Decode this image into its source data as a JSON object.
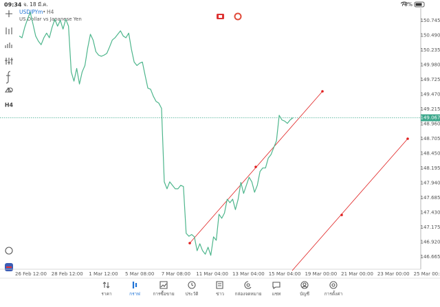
{
  "status_bar": {
    "time": "09:34",
    "date": "จ. 18 มี.ค.",
    "battery": "78%"
  },
  "header": {
    "symbol": "USDJPYm",
    "separator": "•",
    "timeframe": "H4",
    "description": "US Dollar vs Japanese Yen"
  },
  "chart_data": {
    "type": "line",
    "color": "#4cb58b",
    "values": [
      150.48,
      150.45,
      150.63,
      150.77,
      150.89,
      150.69,
      150.48,
      150.39,
      150.33,
      150.45,
      150.53,
      150.45,
      150.63,
      150.77,
      150.65,
      150.75,
      150.6,
      150.77,
      150.65,
      149.86,
      149.7,
      149.92,
      149.65,
      149.86,
      149.97,
      150.27,
      150.51,
      150.41,
      150.21,
      150.15,
      150.13,
      150.15,
      150.18,
      150.29,
      150.41,
      150.45,
      150.51,
      150.57,
      150.48,
      150.45,
      150.53,
      150.25,
      150.03,
      149.97,
      150.01,
      150.03,
      149.8,
      149.58,
      149.56,
      149.44,
      149.35,
      149.32,
      149.23,
      147.96,
      147.84,
      147.96,
      147.9,
      147.84,
      147.84,
      147.9,
      147.88,
      147.07,
      147.02,
      147.05,
      147.01,
      146.77,
      146.89,
      146.77,
      146.71,
      146.83,
      146.69,
      147.01,
      146.95,
      147.4,
      147.33,
      147.42,
      147.66,
      147.6,
      147.66,
      147.48,
      147.66,
      147.95,
      147.76,
      147.9,
      148.04,
      147.96,
      147.78,
      147.9,
      148.14,
      148.2,
      148.2,
      148.37,
      148.43,
      148.55,
      148.67,
      149.11,
      149.03,
      149.01,
      148.97,
      149.03,
      149.067
    ],
    "current_price": 149.067,
    "current_price_color": "#3aa68a",
    "grid": false,
    "ylim": [
      146.45,
      150.96
    ],
    "yticks": [
      150.745,
      {
        "value": 150.49,
        "label": "150.490"
      },
      150.235,
      {
        "value": 149.98,
        "label": "149.980"
      },
      149.725,
      {
        "value": 149.47,
        "label": "149.470"
      },
      149.215,
      {
        "value": 148.96,
        "label": "148.960"
      },
      148.705,
      {
        "value": 148.45,
        "label": "148.450"
      },
      148.195,
      {
        "value": 147.94,
        "label": "147.940"
      },
      147.685,
      {
        "value": 147.43,
        "label": "147.430"
      },
      147.175,
      {
        "value": 146.92,
        "label": "146.920"
      },
      146.665
    ],
    "xticks": [
      "26 Feb 12:00",
      "28 Feb 12:00",
      "1 Mar 12:00",
      "5 Mar 08:00",
      "7 Mar 08:00",
      "11 Mar 04:00",
      "13 Mar 04:00",
      "15 Mar 04:00",
      "19 Mar 00:00",
      "21 Mar 00:00",
      "23 Mar 00:00",
      "25 Mar 00:00"
    ]
  },
  "tab_bar": [
    "ราคา",
    "กราฟ",
    "การซื้อขาย",
    "ประวัติ",
    "ข่าว",
    "กล่องจดหมาย",
    "แชท",
    "บัญชี",
    "การตั้งค่า"
  ]
}
